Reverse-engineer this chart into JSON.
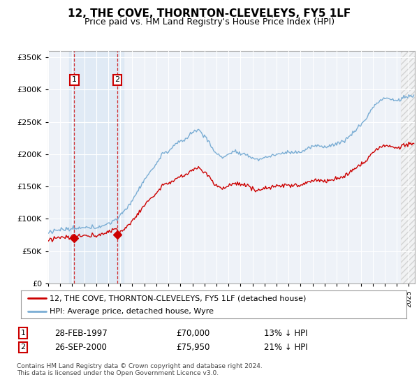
{
  "title": "12, THE COVE, THORNTON-CLEVELEYS, FY5 1LF",
  "subtitle": "Price paid vs. HM Land Registry's House Price Index (HPI)",
  "legend_line1": "12, THE COVE, THORNTON-CLEVELEYS, FY5 1LF (detached house)",
  "legend_line2": "HPI: Average price, detached house, Wyre",
  "price_color": "#cc0000",
  "hpi_color": "#7aadd4",
  "annotation1_date": "28-FEB-1997",
  "annotation1_price": "£70,000",
  "annotation1_pct": "13% ↓ HPI",
  "annotation2_date": "26-SEP-2000",
  "annotation2_price": "£75,950",
  "annotation2_pct": "21% ↓ HPI",
  "footnote": "Contains HM Land Registry data © Crown copyright and database right 2024.\nThis data is licensed under the Open Government Licence v3.0.",
  "ylim": [
    0,
    360000
  ],
  "yticks": [
    0,
    50000,
    100000,
    150000,
    200000,
    250000,
    300000,
    350000
  ],
  "background_color": "#ffffff",
  "plot_bg_color": "#eef2f8",
  "grid_color": "#ffffff",
  "shade_color": "#d4e4f4",
  "hatch_color": "#d8d8d8",
  "sale1_year": 1997.17,
  "sale2_year": 2000.75,
  "sale1_price": 70000,
  "sale2_price": 75950
}
